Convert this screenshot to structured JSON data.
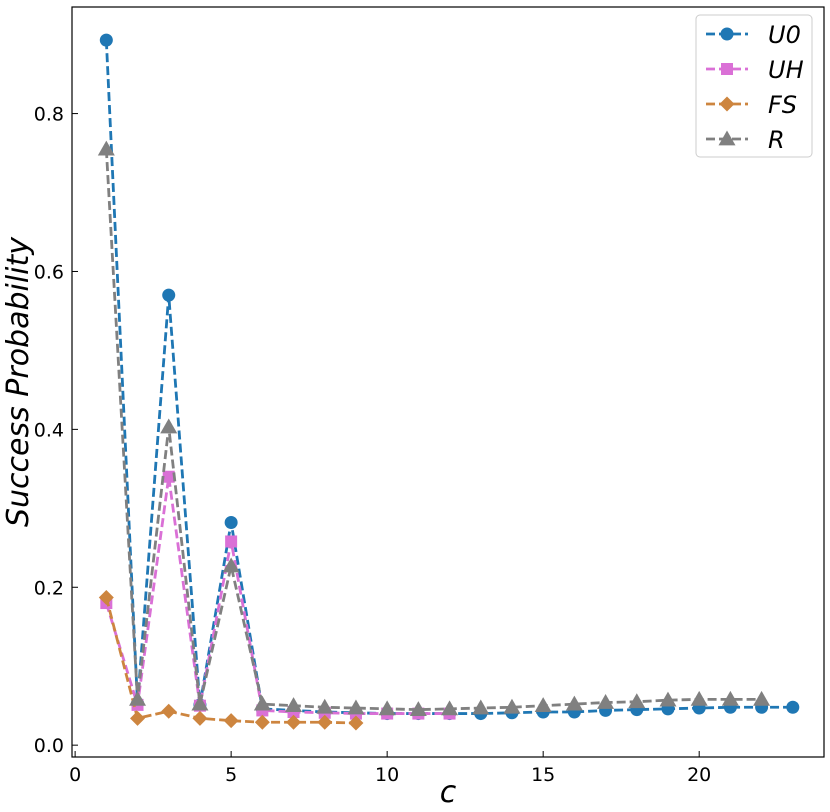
{
  "chart_data": {
    "type": "line",
    "title": "",
    "xlabel": "c",
    "ylabel": "Success Probability",
    "xlim": [
      -0.1,
      24.0
    ],
    "ylim": [
      -0.015,
      0.935
    ],
    "xticks": [
      0,
      5,
      10,
      15,
      20
    ],
    "xtick_labels": [
      "0",
      "5",
      "10",
      "15",
      "20"
    ],
    "yticks": [
      0.0,
      0.2,
      0.4,
      0.6,
      0.8
    ],
    "ytick_labels": [
      "0.0",
      "0.2",
      "0.4",
      "0.6",
      "0.8"
    ],
    "grid": false,
    "legend_position": "top-right",
    "series": [
      {
        "name": "U0",
        "marker": "circle",
        "color": "#1f77b4",
        "x": [
          1,
          2,
          3,
          4,
          5,
          6,
          7,
          8,
          9,
          10,
          11,
          12,
          13,
          14,
          15,
          16,
          17,
          18,
          19,
          20,
          21,
          22,
          23
        ],
        "values": [
          0.893,
          0.053,
          0.57,
          0.051,
          0.282,
          0.046,
          0.044,
          0.042,
          0.041,
          0.04,
          0.04,
          0.04,
          0.04,
          0.041,
          0.042,
          0.042,
          0.044,
          0.045,
          0.046,
          0.047,
          0.048,
          0.048,
          0.048
        ]
      },
      {
        "name": "UH",
        "marker": "square",
        "color": "#da70d6",
        "x": [
          1,
          2,
          3,
          4,
          5,
          6,
          7,
          8,
          9,
          10,
          11,
          12
        ],
        "values": [
          0.18,
          0.051,
          0.34,
          0.05,
          0.258,
          0.044,
          0.042,
          0.041,
          0.04,
          0.04,
          0.04,
          0.04
        ]
      },
      {
        "name": "FS",
        "marker": "diamond",
        "color": "#cd853f",
        "x": [
          1,
          2,
          3,
          4,
          5,
          6,
          7,
          8,
          9
        ],
        "values": [
          0.187,
          0.034,
          0.043,
          0.034,
          0.031,
          0.029,
          0.029,
          0.029,
          0.028
        ]
      },
      {
        "name": "R",
        "marker": "triangle",
        "color": "#808080",
        "x": [
          1,
          2,
          3,
          4,
          5,
          6,
          7,
          8,
          9,
          10,
          11,
          12,
          13,
          14,
          15,
          16,
          17,
          18,
          19,
          20,
          21,
          22
        ],
        "values": [
          0.755,
          0.058,
          0.403,
          0.052,
          0.227,
          0.052,
          0.05,
          0.048,
          0.047,
          0.046,
          0.045,
          0.046,
          0.047,
          0.048,
          0.05,
          0.052,
          0.054,
          0.055,
          0.057,
          0.058,
          0.058,
          0.058
        ]
      }
    ]
  }
}
